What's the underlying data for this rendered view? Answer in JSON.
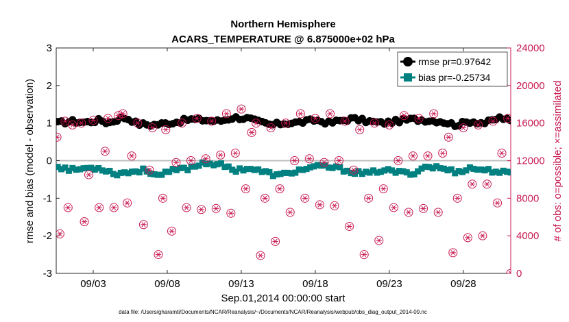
{
  "chart_data": {
    "type": "line",
    "title": "Northern Hemisphere",
    "subtitle": "ACARS_TEMPERATURE @ 6.875000e+02 hPa",
    "xlabel": "Sep.01,2014 00:00:00 start",
    "ylabel": "rmse and bias (model - observation)",
    "ylabel_right": "# of obs: o=possible; ×=assimilated",
    "x_range_days": [
      0.5,
      31.2
    ],
    "ylim": [
      -3,
      3
    ],
    "ylim_right": [
      0,
      24000
    ],
    "x_ticks": [
      {
        "day": 3,
        "label": "09/03"
      },
      {
        "day": 8,
        "label": "09/08"
      },
      {
        "day": 13,
        "label": "09/13"
      },
      {
        "day": 18,
        "label": "09/18"
      },
      {
        "day": 23,
        "label": "09/23"
      },
      {
        "day": 28,
        "label": "09/28"
      }
    ],
    "y_ticks": [
      "-3",
      "-2",
      "-1",
      "0",
      "1",
      "2",
      "3"
    ],
    "y_ticks_right": [
      "0",
      "4000",
      "8000",
      "12000",
      "16000",
      "20000",
      "24000"
    ],
    "footnote": "data file: /Users/gharamti/Documents/NCAR/Reanalysis/~/Documents/NCAR/Reanalysis/webpub/obs_diag_output_2014-09.nc",
    "series": [
      {
        "name": "rmse pr=0.97642",
        "color": "#000000",
        "marker": "circle",
        "axis": "left",
        "keypoints": [
          [
            0.6,
            1.0
          ],
          [
            1.5,
            1.05
          ],
          [
            2.5,
            1.02
          ],
          [
            3.5,
            1.08
          ],
          [
            4.0,
            1.0
          ],
          [
            5.0,
            1.15
          ],
          [
            5.5,
            1.1
          ],
          [
            6.0,
            0.98
          ],
          [
            7.0,
            0.95
          ],
          [
            8.0,
            1.0
          ],
          [
            8.5,
            1.02
          ],
          [
            9.5,
            1.1
          ],
          [
            10.5,
            1.08
          ],
          [
            11.5,
            1.05
          ],
          [
            12.5,
            1.15
          ],
          [
            13.5,
            1.12
          ],
          [
            14.0,
            1.05
          ],
          [
            15.0,
            0.95
          ],
          [
            16.0,
            1.0
          ],
          [
            17.0,
            1.02
          ],
          [
            18.0,
            1.08
          ],
          [
            19.0,
            1.0
          ],
          [
            19.5,
            1.05
          ],
          [
            20.5,
            1.12
          ],
          [
            21.5,
            1.05
          ],
          [
            22.5,
            1.0
          ],
          [
            23.5,
            1.05
          ],
          [
            24.5,
            1.1
          ],
          [
            25.5,
            1.08
          ],
          [
            26.5,
            1.05
          ],
          [
            27.5,
            0.95
          ],
          [
            28.5,
            1.05
          ],
          [
            29.5,
            1.0
          ],
          [
            30.5,
            1.15
          ],
          [
            31.2,
            1.05
          ]
        ]
      },
      {
        "name": "bias pr=-0.25734",
        "color": "#008080",
        "marker": "square",
        "axis": "left",
        "keypoints": [
          [
            0.6,
            -0.15
          ],
          [
            1.5,
            -0.25
          ],
          [
            2.5,
            -0.2
          ],
          [
            3.5,
            -0.2
          ],
          [
            4.5,
            -0.35
          ],
          [
            5.5,
            -0.3
          ],
          [
            6.5,
            -0.25
          ],
          [
            7.5,
            -0.4
          ],
          [
            8.5,
            -0.25
          ],
          [
            9.5,
            -0.2
          ],
          [
            10.5,
            -0.05
          ],
          [
            11.5,
            -0.1
          ],
          [
            12.5,
            -0.25
          ],
          [
            13.5,
            -0.2
          ],
          [
            14.5,
            -0.3
          ],
          [
            15.5,
            -0.4
          ],
          [
            16.5,
            -0.3
          ],
          [
            17.5,
            -0.2
          ],
          [
            18.5,
            -0.15
          ],
          [
            19.5,
            -0.2
          ],
          [
            20.5,
            -0.3
          ],
          [
            21.5,
            -0.35
          ],
          [
            22.5,
            -0.25
          ],
          [
            23.5,
            -0.3
          ],
          [
            24.5,
            -0.35
          ],
          [
            25.5,
            -0.15
          ],
          [
            26.5,
            -0.2
          ],
          [
            27.5,
            -0.3
          ],
          [
            28.5,
            -0.2
          ],
          [
            29.5,
            -0.25
          ],
          [
            30.5,
            -0.3
          ],
          [
            31.2,
            -0.35
          ]
        ]
      },
      {
        "name": "# of obs",
        "color": "#c8174f",
        "marker": "circle-star",
        "axis": "right",
        "points": [
          [
            0.55,
            14500
          ],
          [
            0.75,
            4200
          ],
          [
            1.1,
            16200
          ],
          [
            1.3,
            7000
          ],
          [
            1.6,
            15800
          ],
          [
            2.2,
            16000
          ],
          [
            2.4,
            5500
          ],
          [
            2.7,
            10500
          ],
          [
            3.0,
            16300
          ],
          [
            3.4,
            7000
          ],
          [
            3.8,
            13000
          ],
          [
            4.0,
            16500
          ],
          [
            4.4,
            7000
          ],
          [
            4.7,
            16800
          ],
          [
            5.0,
            17000
          ],
          [
            5.3,
            7500
          ],
          [
            5.6,
            12500
          ],
          [
            6.0,
            16000
          ],
          [
            6.4,
            5200
          ],
          [
            6.8,
            11000
          ],
          [
            7.0,
            15500
          ],
          [
            7.4,
            2000
          ],
          [
            7.7,
            8000
          ],
          [
            7.9,
            15300
          ],
          [
            8.3,
            4500
          ],
          [
            8.6,
            11800
          ],
          [
            9.0,
            16000
          ],
          [
            9.3,
            7000
          ],
          [
            9.6,
            12000
          ],
          [
            10.0,
            16500
          ],
          [
            10.3,
            6800
          ],
          [
            10.6,
            12200
          ],
          [
            11.0,
            16200
          ],
          [
            11.3,
            6900
          ],
          [
            11.6,
            12600
          ],
          [
            12.0,
            17000
          ],
          [
            12.3,
            6400
          ],
          [
            12.6,
            12800
          ],
          [
            13.0,
            17500
          ],
          [
            13.3,
            9000
          ],
          [
            13.7,
            15000
          ],
          [
            14.0,
            16000
          ],
          [
            14.3,
            1900
          ],
          [
            14.6,
            8000
          ],
          [
            15.0,
            15500
          ],
          [
            15.3,
            3400
          ],
          [
            15.6,
            9000
          ],
          [
            16.0,
            16000
          ],
          [
            16.3,
            6500
          ],
          [
            16.6,
            12000
          ],
          [
            17.0,
            17000
          ],
          [
            17.3,
            8000
          ],
          [
            17.6,
            12200
          ],
          [
            18.0,
            16500
          ],
          [
            18.3,
            7300
          ],
          [
            18.6,
            11800
          ],
          [
            19.0,
            17000
          ],
          [
            19.3,
            7200
          ],
          [
            19.6,
            12000
          ],
          [
            20.0,
            16200
          ],
          [
            20.3,
            5000
          ],
          [
            20.6,
            11000
          ],
          [
            21.0,
            15300
          ],
          [
            21.3,
            2000
          ],
          [
            21.6,
            8000
          ],
          [
            22.0,
            16000
          ],
          [
            22.3,
            3500
          ],
          [
            22.6,
            9000
          ],
          [
            23.0,
            15800
          ],
          [
            23.3,
            7000
          ],
          [
            23.6,
            12000
          ],
          [
            24.0,
            16800
          ],
          [
            24.3,
            6500
          ],
          [
            24.6,
            12500
          ],
          [
            25.0,
            16500
          ],
          [
            25.3,
            6900
          ],
          [
            25.6,
            12500
          ],
          [
            26.0,
            17000
          ],
          [
            26.3,
            6500
          ],
          [
            26.6,
            12800
          ],
          [
            27.0,
            14500
          ],
          [
            27.3,
            2200
          ],
          [
            27.6,
            8000
          ],
          [
            28.0,
            15500
          ],
          [
            28.3,
            3800
          ],
          [
            28.6,
            9500
          ],
          [
            29.0,
            15800
          ],
          [
            29.3,
            4000
          ],
          [
            29.6,
            9500
          ],
          [
            30.0,
            16200
          ],
          [
            30.3,
            7500
          ],
          [
            30.6,
            12800
          ],
          [
            31.0,
            16500
          ],
          [
            31.2,
            0
          ]
        ]
      }
    ]
  }
}
